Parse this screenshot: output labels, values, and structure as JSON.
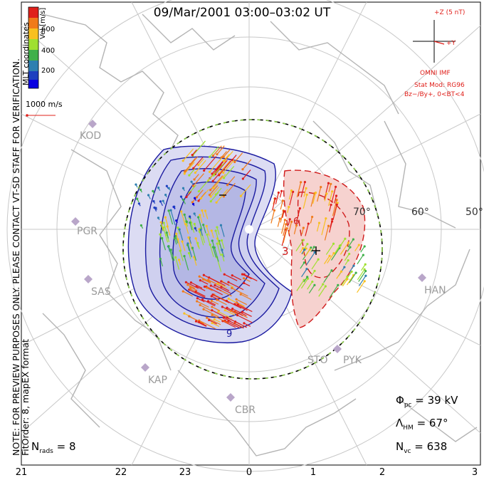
{
  "title": "09/Mar/2001 03:00–03:02 UT",
  "note_lines": [
    "NOTE: FOR PREVIEW PURPOSES ONLY. PLEASE CONTACT VT-SD STAFF FOR VERIFICATION.",
    "FitOrder: 8, mapEX format"
  ],
  "coords_label": "MLT coordinates",
  "colorbar": {
    "unit": "Vel [m/s]",
    "labels": [
      "600",
      "400",
      "200"
    ],
    "colors": [
      "#e0201b",
      "#f07a1a",
      "#f8c020",
      "#9fe030",
      "#3fb04a",
      "#2e7fb0",
      "#1d3fbf",
      "#0a00e0"
    ]
  },
  "reference_vector": "1000 m/s",
  "imf": {
    "scale": "+Z (5 nT)",
    "axis": "+Y",
    "source": "OMNI IMF",
    "model": "Stat Mod: RG96",
    "condition": "Bz−/By+, 0<BT<4"
  },
  "stats": {
    "phi_pc": "39 kV",
    "lambda_hm": "67°",
    "n_vc": "638",
    "n_rads": "8"
  },
  "x_ticks": [
    "21",
    "22",
    "23",
    "0",
    "1",
    "2",
    "3"
  ],
  "latitude_labels": [
    "70°",
    "60°",
    "50°"
  ],
  "sites": [
    "KOD",
    "PGR",
    "SAS",
    "KAP",
    "CBR",
    "STO",
    "PYK",
    "HAN"
  ],
  "potential_labels": [
    "+",
    "−",
    "3",
    "6",
    "9"
  ],
  "colors": {
    "negative_fill": "#c9cbee",
    "positive_fill": "#f6d2cf",
    "negative_line": "#1a1aa0",
    "positive_line": "#d01b1b",
    "boundary_dash": "#8ed04a",
    "coast": "#b4b4b4"
  }
}
